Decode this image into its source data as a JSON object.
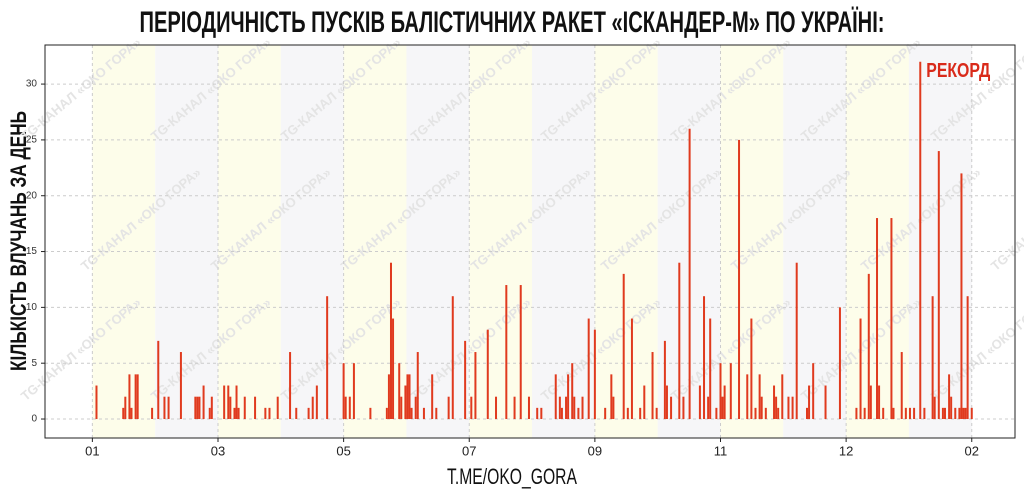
{
  "chart_data": {
    "type": "bar",
    "title": "ПЕРІОДИЧНІСТЬ ПУСКІВ БАЛІСТИЧНИХ РАКЕТ «ІСКАНДЕР-М» ПО УКРАЇНІ:",
    "x_label": "T.ME/OKO_GORA",
    "y_label": "КІЛЬКІСТЬ ВЛУЧАНЬ ЗА ДЕНЬ",
    "annotation": "РЕКОРД",
    "watermark": "TG-КАНАЛ «ОКО ГОРА»",
    "color": "#e03a1e",
    "grid": true,
    "xlim": [
      -23,
      448
    ],
    "ylim": [
      -1.7,
      33.5
    ],
    "xticks": [
      {
        "value": 0,
        "label": "01"
      },
      {
        "value": 61,
        "label": "03"
      },
      {
        "value": 122,
        "label": "05"
      },
      {
        "value": 183,
        "label": "07"
      },
      {
        "value": 244,
        "label": "09"
      },
      {
        "value": 305,
        "label": "11"
      },
      {
        "value": 366,
        "label": "12"
      },
      {
        "value": 427,
        "label": "02"
      }
    ],
    "yticks": [
      0,
      5,
      10,
      15,
      20,
      25,
      30
    ],
    "x": [
      2,
      15,
      16,
      18,
      19,
      21,
      22,
      29,
      32,
      35,
      37,
      43,
      50,
      51,
      52,
      54,
      57,
      58,
      64,
      66,
      67,
      69,
      70,
      71,
      74,
      79,
      84,
      86,
      90,
      96,
      99,
      105,
      107,
      109,
      114,
      122,
      123,
      125,
      127,
      135,
      143,
      144,
      145,
      146,
      149,
      150,
      152,
      153,
      154,
      155,
      157,
      158,
      161,
      165,
      167,
      173,
      175,
      181,
      184,
      186,
      192,
      196,
      201,
      205,
      208,
      212,
      216,
      218,
      225,
      227,
      228,
      230,
      231,
      233,
      234,
      236,
      238,
      241,
      244,
      249,
      252,
      253,
      258,
      260,
      262,
      266,
      268,
      272,
      274,
      278,
      279,
      281,
      285,
      287,
      290,
      295,
      297,
      299,
      300,
      303,
      305,
      306,
      307,
      310,
      314,
      318,
      320,
      322,
      324,
      325,
      327,
      331,
      332,
      333,
      335,
      338,
      340,
      342,
      347,
      348,
      350,
      356,
      363,
      371,
      373,
      375,
      377,
      378,
      381,
      382,
      384,
      388,
      389,
      393,
      395,
      397,
      399,
      402,
      404,
      408,
      409,
      411,
      413,
      414,
      416,
      417,
      419,
      421,
      422,
      423,
      424,
      425,
      427
    ],
    "values": [
      3,
      1,
      2,
      4,
      1,
      4,
      4,
      1,
      7,
      2,
      2,
      6,
      2,
      2,
      2,
      3,
      1,
      2,
      3,
      3,
      2,
      1,
      3,
      1,
      2,
      2,
      1,
      1,
      2,
      6,
      1,
      1,
      2,
      3,
      11,
      5,
      2,
      2,
      5,
      1,
      1,
      4,
      14,
      9,
      5,
      2,
      3,
      4,
      4,
      1,
      2,
      6,
      1,
      4,
      1,
      2,
      11,
      7,
      2,
      6,
      8,
      2,
      12,
      2,
      12,
      2,
      1,
      1,
      4,
      2,
      1,
      2,
      4,
      5,
      2,
      1,
      2,
      9,
      8,
      1,
      4,
      2,
      13,
      1,
      9,
      1,
      3,
      6,
      1,
      7,
      3,
      2,
      14,
      2,
      26,
      3,
      11,
      2,
      9,
      1,
      5,
      2,
      3,
      5,
      25,
      4,
      9,
      1,
      4,
      2,
      1,
      3,
      2,
      1,
      4,
      2,
      2,
      14,
      1,
      3,
      5,
      3,
      10,
      1,
      9,
      1,
      13,
      3,
      18,
      3,
      1,
      18,
      1,
      6,
      1,
      1,
      1,
      32,
      1,
      11,
      2,
      24,
      1,
      1,
      4,
      2,
      1,
      1,
      22,
      1,
      1,
      11,
      1
    ]
  }
}
